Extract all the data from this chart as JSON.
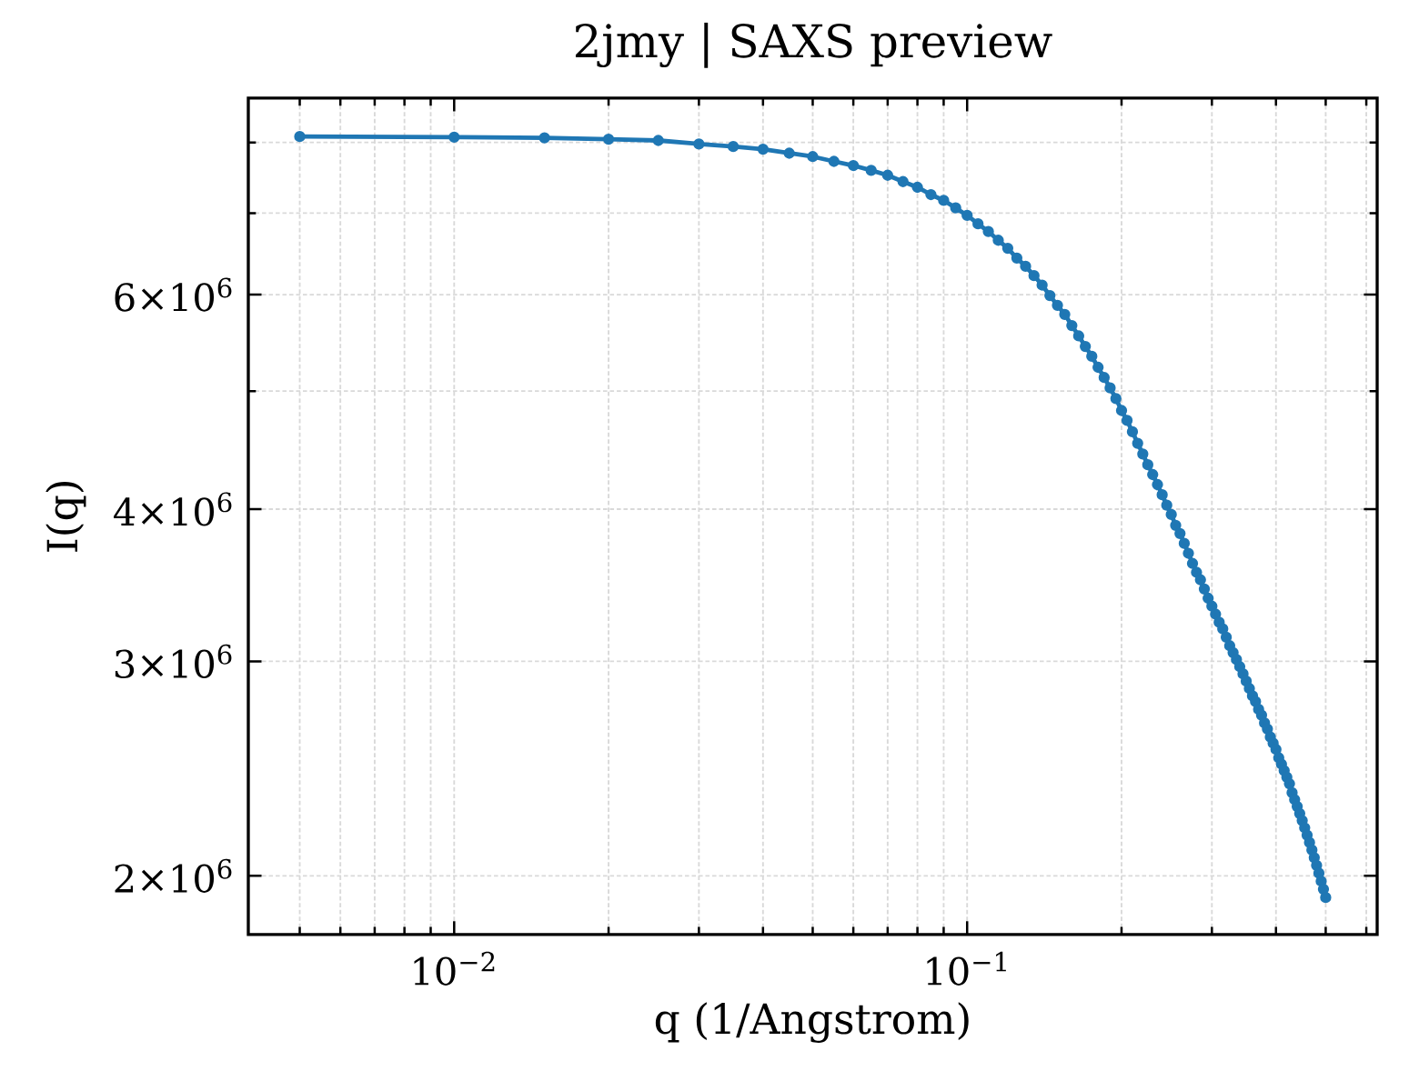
{
  "chart_data": {
    "type": "line",
    "title": "2jmy | SAXS preview",
    "xlabel": "q (1/Angstrom)",
    "ylabel": "I(q)",
    "x": [
      0.005,
      0.01,
      0.015,
      0.02,
      0.025,
      0.03,
      0.035,
      0.04,
      0.045,
      0.05,
      0.055,
      0.06,
      0.065,
      0.07,
      0.075,
      0.08,
      0.085,
      0.09,
      0.095,
      0.1,
      0.105,
      0.11,
      0.115,
      0.12,
      0.125,
      0.13,
      0.135,
      0.14,
      0.145,
      0.15,
      0.155,
      0.16,
      0.165,
      0.17,
      0.175,
      0.18,
      0.185,
      0.19,
      0.195,
      0.2,
      0.205,
      0.21,
      0.215,
      0.22,
      0.225,
      0.23,
      0.235,
      0.24,
      0.245,
      0.25,
      0.255,
      0.26,
      0.265,
      0.27,
      0.275,
      0.28,
      0.285,
      0.29,
      0.295,
      0.3,
      0.305,
      0.31,
      0.315,
      0.32,
      0.325,
      0.33,
      0.335,
      0.34,
      0.345,
      0.35,
      0.355,
      0.36,
      0.365,
      0.37,
      0.375,
      0.38,
      0.385,
      0.39,
      0.395,
      0.4,
      0.405,
      0.41,
      0.415,
      0.42,
      0.425,
      0.43,
      0.435,
      0.44,
      0.445,
      0.45,
      0.455,
      0.46,
      0.465,
      0.47,
      0.475,
      0.48,
      0.485,
      0.49,
      0.495,
      0.5
    ],
    "series": [
      {
        "color": "#1f77b4",
        "values": [
          8090000,
          8080000,
          8070000,
          8050000,
          8030000,
          7980000,
          7940000,
          7900000,
          7840000,
          7790000,
          7720000,
          7660000,
          7590000,
          7520000,
          7430000,
          7350000,
          7250000,
          7170000,
          7070000,
          6970000,
          6860000,
          6760000,
          6650000,
          6550000,
          6430000,
          6330000,
          6220000,
          6110000,
          5990000,
          5880000,
          5780000,
          5660000,
          5550000,
          5440000,
          5340000,
          5230000,
          5130000,
          5030000,
          4930000,
          4820000,
          4730000,
          4630000,
          4530000,
          4440000,
          4350000,
          4270000,
          4190000,
          4110000,
          4030000,
          3960000,
          3880000,
          3820000,
          3750000,
          3680000,
          3610000,
          3550000,
          3500000,
          3440000,
          3380000,
          3330000,
          3280000,
          3230000,
          3190000,
          3140000,
          3090000,
          3050000,
          3010000,
          2970000,
          2930000,
          2890000,
          2850000,
          2810000,
          2780000,
          2740000,
          2710000,
          2670000,
          2640000,
          2600000,
          2570000,
          2540000,
          2500000,
          2470000,
          2440000,
          2410000,
          2380000,
          2340000,
          2310000,
          2280000,
          2250000,
          2220000,
          2190000,
          2160000,
          2130000,
          2100000,
          2070000,
          2040000,
          2010000,
          1980000,
          1950000,
          1920000
        ]
      }
    ],
    "log": "xy",
    "xlim": [
      0.00397,
      0.63
    ],
    "ylim": [
      1790000,
      8700000
    ],
    "xticks": [
      {
        "value": 0.005,
        "label": null
      },
      {
        "value": 0.006,
        "label": null
      },
      {
        "value": 0.007,
        "label": null
      },
      {
        "value": 0.008,
        "label": null
      },
      {
        "value": 0.009,
        "label": null
      },
      {
        "value": 0.01,
        "label": "10$^{−2}$"
      },
      {
        "value": 0.02,
        "label": null
      },
      {
        "value": 0.03,
        "label": null
      },
      {
        "value": 0.04,
        "label": null
      },
      {
        "value": 0.05,
        "label": null
      },
      {
        "value": 0.06,
        "label": null
      },
      {
        "value": 0.07,
        "label": null
      },
      {
        "value": 0.08,
        "label": null
      },
      {
        "value": 0.09,
        "label": null
      },
      {
        "value": 0.1,
        "label": "10$^{−1}$"
      },
      {
        "value": 0.2,
        "label": null
      },
      {
        "value": 0.3,
        "label": null
      },
      {
        "value": 0.4,
        "label": null
      },
      {
        "value": 0.5,
        "label": null
      },
      {
        "value": 0.6,
        "label": null
      }
    ],
    "yticks": [
      {
        "value": 2000000,
        "label": "2×10$^{6}$"
      },
      {
        "value": 3000000,
        "label": "3×10$^{6}$"
      },
      {
        "value": 4000000,
        "label": "4×10$^{6}$"
      },
      {
        "value": 5000000,
        "label": null
      },
      {
        "value": 6000000,
        "label": "6×10$^{6}$"
      },
      {
        "value": 7000000,
        "label": null
      },
      {
        "value": 8000000,
        "label": null
      }
    ],
    "grid": true,
    "marker": "circle",
    "line_style": "solid"
  }
}
